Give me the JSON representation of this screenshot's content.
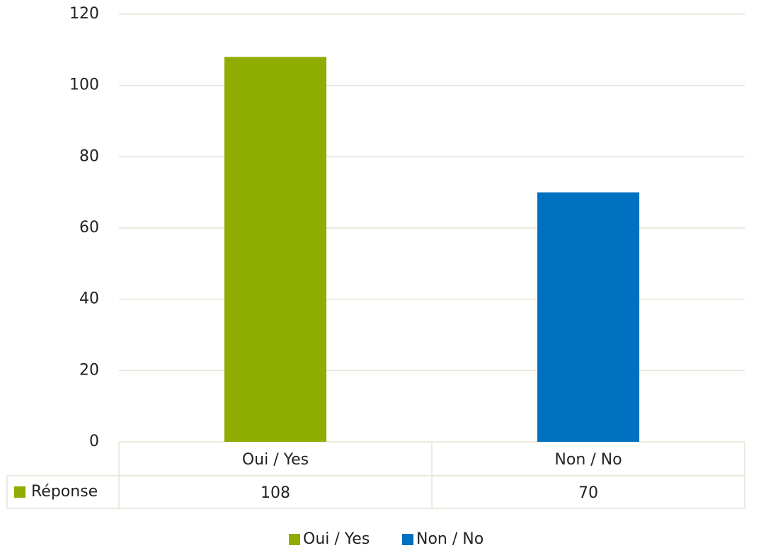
{
  "chart_data": {
    "type": "bar",
    "categories": [
      "Oui / Yes",
      "Non / No"
    ],
    "series": [
      {
        "name": "Réponse",
        "values": [
          108,
          70
        ]
      }
    ],
    "colors": [
      "#8fac00",
      "#0070c0"
    ],
    "ylim": [
      0,
      120
    ],
    "yticks": [
      0,
      20,
      40,
      60,
      80,
      100,
      120
    ],
    "grid": true,
    "legend": "bottom",
    "data_table": true
  }
}
